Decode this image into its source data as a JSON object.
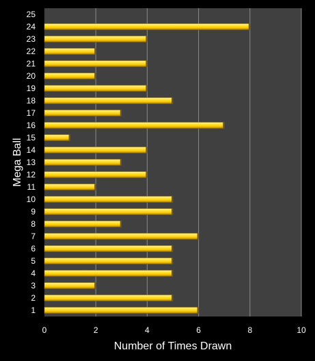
{
  "chart_data": {
    "type": "bar",
    "orientation": "horizontal",
    "xlabel": "Number of Times Drawn",
    "ylabel": "Mega Ball",
    "xlim": [
      0,
      10
    ],
    "xticks": [
      0,
      2,
      4,
      6,
      8,
      10
    ],
    "grid": true,
    "categories": [
      "1",
      "2",
      "3",
      "4",
      "5",
      "6",
      "7",
      "8",
      "9",
      "10",
      "11",
      "12",
      "13",
      "14",
      "15",
      "16",
      "17",
      "18",
      "19",
      "20",
      "21",
      "22",
      "23",
      "24",
      "25"
    ],
    "values": [
      6,
      5,
      2,
      5,
      5,
      5,
      6,
      3,
      5,
      5,
      2,
      4,
      3,
      4,
      1,
      7,
      3,
      5,
      4,
      2,
      4,
      2,
      4,
      8,
      0
    ],
    "colors": {
      "background": "#000000",
      "plot_area": "#404040",
      "grid": "#8a8a8a",
      "bar_light": "#ffef6a",
      "bar_mid": "#ffd21c",
      "bar_dark": "#a07800",
      "text": "#ffffff"
    }
  }
}
